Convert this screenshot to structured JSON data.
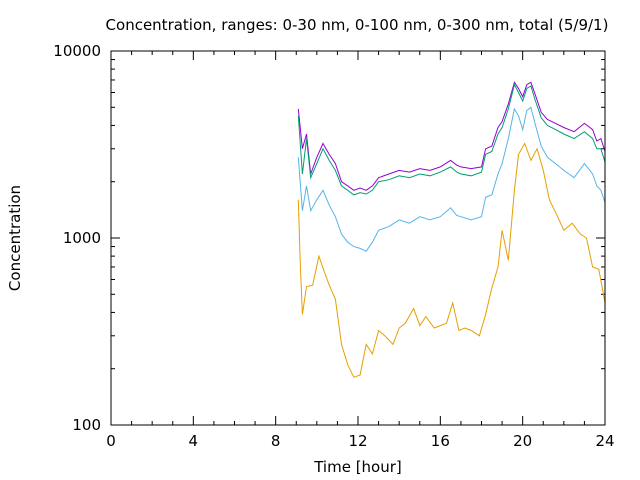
{
  "chart_data": {
    "type": "line",
    "title": "Concentration, ranges: 0-30 nm, 0-100 nm, 0-300 nm, total (5/9/1)",
    "xlabel": "Time [hour]",
    "ylabel": "Concentration",
    "xlim": [
      0,
      24
    ],
    "ylim": [
      100,
      10000
    ],
    "yscale": "log",
    "grid": false,
    "legend": "none",
    "xticks": [
      0,
      4,
      8,
      12,
      16,
      20,
      24
    ],
    "yticks": [
      100,
      1000,
      10000
    ],
    "xtick_labels": [
      "0",
      "4",
      "8",
      "12",
      "16",
      "20",
      "24"
    ],
    "ytick_labels": [
      "100",
      "1000",
      "10000"
    ],
    "series": [
      {
        "color": "#9400d3",
        "x": [
          9.1,
          9.3,
          9.5,
          9.7,
          10.0,
          10.3,
          10.6,
          10.9,
          11.2,
          11.5,
          11.8,
          12.1,
          12.4,
          12.7,
          13.0,
          13.5,
          14.0,
          14.5,
          15.0,
          15.5,
          16.0,
          16.5,
          16.8,
          17.0,
          17.5,
          18.0,
          18.2,
          18.5,
          18.8,
          19.0,
          19.3,
          19.6,
          19.8,
          20.0,
          20.2,
          20.4,
          20.6,
          20.9,
          21.2,
          21.6,
          22.0,
          22.5,
          23.0,
          23.4,
          23.6,
          23.8,
          24.0
        ],
        "y": [
          4900,
          3000,
          3600,
          2200,
          2700,
          3200,
          2800,
          2500,
          2000,
          1900,
          1800,
          1850,
          1800,
          1900,
          2100,
          2200,
          2300,
          2250,
          2350,
          2300,
          2400,
          2600,
          2450,
          2400,
          2350,
          2400,
          3000,
          3100,
          3900,
          4200,
          5200,
          6800,
          6300,
          5700,
          6600,
          6800,
          5900,
          4700,
          4300,
          4100,
          3900,
          3700,
          4100,
          3800,
          3300,
          3400,
          2900
        ]
      },
      {
        "color": "#009e73",
        "x": [
          9.1,
          9.3,
          9.5,
          9.7,
          10.0,
          10.3,
          10.6,
          10.9,
          11.2,
          11.5,
          11.8,
          12.1,
          12.4,
          12.7,
          13.0,
          13.5,
          14.0,
          14.5,
          15.0,
          15.5,
          16.0,
          16.5,
          16.8,
          17.0,
          17.5,
          18.0,
          18.2,
          18.5,
          18.8,
          19.0,
          19.3,
          19.6,
          19.8,
          20.0,
          20.2,
          20.4,
          20.6,
          20.9,
          21.2,
          21.6,
          22.0,
          22.5,
          23.0,
          23.4,
          23.6,
          23.8,
          24.0
        ],
        "y": [
          4500,
          2200,
          3400,
          2100,
          2500,
          3000,
          2600,
          2300,
          1900,
          1800,
          1700,
          1750,
          1720,
          1800,
          2000,
          2050,
          2150,
          2100,
          2200,
          2150,
          2250,
          2400,
          2250,
          2200,
          2150,
          2250,
          2800,
          2900,
          3600,
          3900,
          4900,
          6600,
          6000,
          5400,
          6300,
          6500,
          5500,
          4400,
          4000,
          3800,
          3600,
          3400,
          3700,
          3400,
          3000,
          3000,
          2550
        ]
      },
      {
        "color": "#56b4e9",
        "x": [
          9.1,
          9.3,
          9.5,
          9.7,
          10.0,
          10.3,
          10.6,
          10.9,
          11.2,
          11.5,
          11.8,
          12.1,
          12.4,
          12.7,
          13.0,
          13.5,
          14.0,
          14.5,
          15.0,
          15.5,
          16.0,
          16.5,
          16.8,
          17.0,
          17.5,
          18.0,
          18.2,
          18.5,
          18.8,
          19.0,
          19.3,
          19.6,
          19.8,
          20.0,
          20.2,
          20.4,
          20.6,
          20.9,
          21.2,
          21.6,
          22.0,
          22.5,
          23.0,
          23.4,
          23.6,
          23.8,
          24.0
        ],
        "y": [
          2700,
          1400,
          1900,
          1400,
          1600,
          1800,
          1500,
          1300,
          1050,
          950,
          900,
          880,
          850,
          950,
          1100,
          1150,
          1250,
          1200,
          1300,
          1250,
          1300,
          1450,
          1320,
          1300,
          1250,
          1300,
          1650,
          1700,
          2200,
          2500,
          3400,
          4900,
          4500,
          3800,
          4800,
          5000,
          4100,
          3100,
          2700,
          2500,
          2300,
          2100,
          2500,
          2200,
          1900,
          1800,
          1550
        ]
      },
      {
        "color": "#e69f00",
        "x": [
          9.1,
          9.2,
          9.3,
          9.5,
          9.8,
          10.1,
          10.3,
          10.6,
          10.9,
          11.2,
          11.5,
          11.8,
          12.1,
          12.4,
          12.7,
          13.0,
          13.3,
          13.7,
          14.0,
          14.3,
          14.7,
          15.0,
          15.3,
          15.7,
          16.0,
          16.3,
          16.6,
          16.9,
          17.2,
          17.5,
          17.9,
          18.2,
          18.5,
          18.8,
          19.0,
          19.3,
          19.6,
          19.8,
          20.1,
          20.4,
          20.7,
          21.0,
          21.3,
          21.7,
          22.0,
          22.4,
          22.8,
          23.1,
          23.4,
          23.7,
          24.0
        ],
        "y": [
          1600,
          700,
          390,
          550,
          560,
          800,
          690,
          560,
          470,
          270,
          210,
          180,
          185,
          270,
          240,
          320,
          300,
          270,
          330,
          350,
          420,
          340,
          380,
          330,
          340,
          350,
          450,
          320,
          330,
          320,
          300,
          390,
          540,
          700,
          1100,
          760,
          1800,
          2800,
          3200,
          2600,
          3000,
          2300,
          1600,
          1300,
          1100,
          1200,
          1050,
          1000,
          700,
          680,
          450
        ]
      }
    ]
  }
}
